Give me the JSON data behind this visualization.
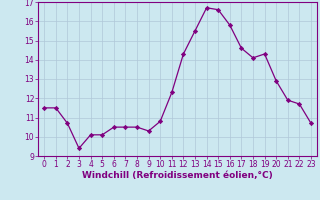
{
  "xlabel": "Windchill (Refroidissement éolien,°C)",
  "x": [
    0,
    1,
    2,
    3,
    4,
    5,
    6,
    7,
    8,
    9,
    10,
    11,
    12,
    13,
    14,
    15,
    16,
    17,
    18,
    19,
    20,
    21,
    22,
    23
  ],
  "y": [
    11.5,
    11.5,
    10.7,
    9.4,
    10.1,
    10.1,
    10.5,
    10.5,
    10.5,
    10.3,
    10.8,
    12.3,
    14.3,
    15.5,
    16.7,
    16.6,
    15.8,
    14.6,
    14.1,
    14.3,
    12.9,
    11.9,
    11.7,
    10.7
  ],
  "line_color": "#800080",
  "marker": "D",
  "marker_size": 2.2,
  "bg_color": "#cce8f0",
  "grid_color": "#b0c8d8",
  "ylim": [
    9,
    17
  ],
  "xlim": [
    -0.5,
    23.5
  ],
  "yticks": [
    9,
    10,
    11,
    12,
    13,
    14,
    15,
    16,
    17
  ],
  "xticks": [
    0,
    1,
    2,
    3,
    4,
    5,
    6,
    7,
    8,
    9,
    10,
    11,
    12,
    13,
    14,
    15,
    16,
    17,
    18,
    19,
    20,
    21,
    22,
    23
  ],
  "tick_fontsize": 5.5,
  "xlabel_fontsize": 6.5,
  "axis_color": "#800080",
  "tick_color": "#800080",
  "spine_color": "#800080"
}
